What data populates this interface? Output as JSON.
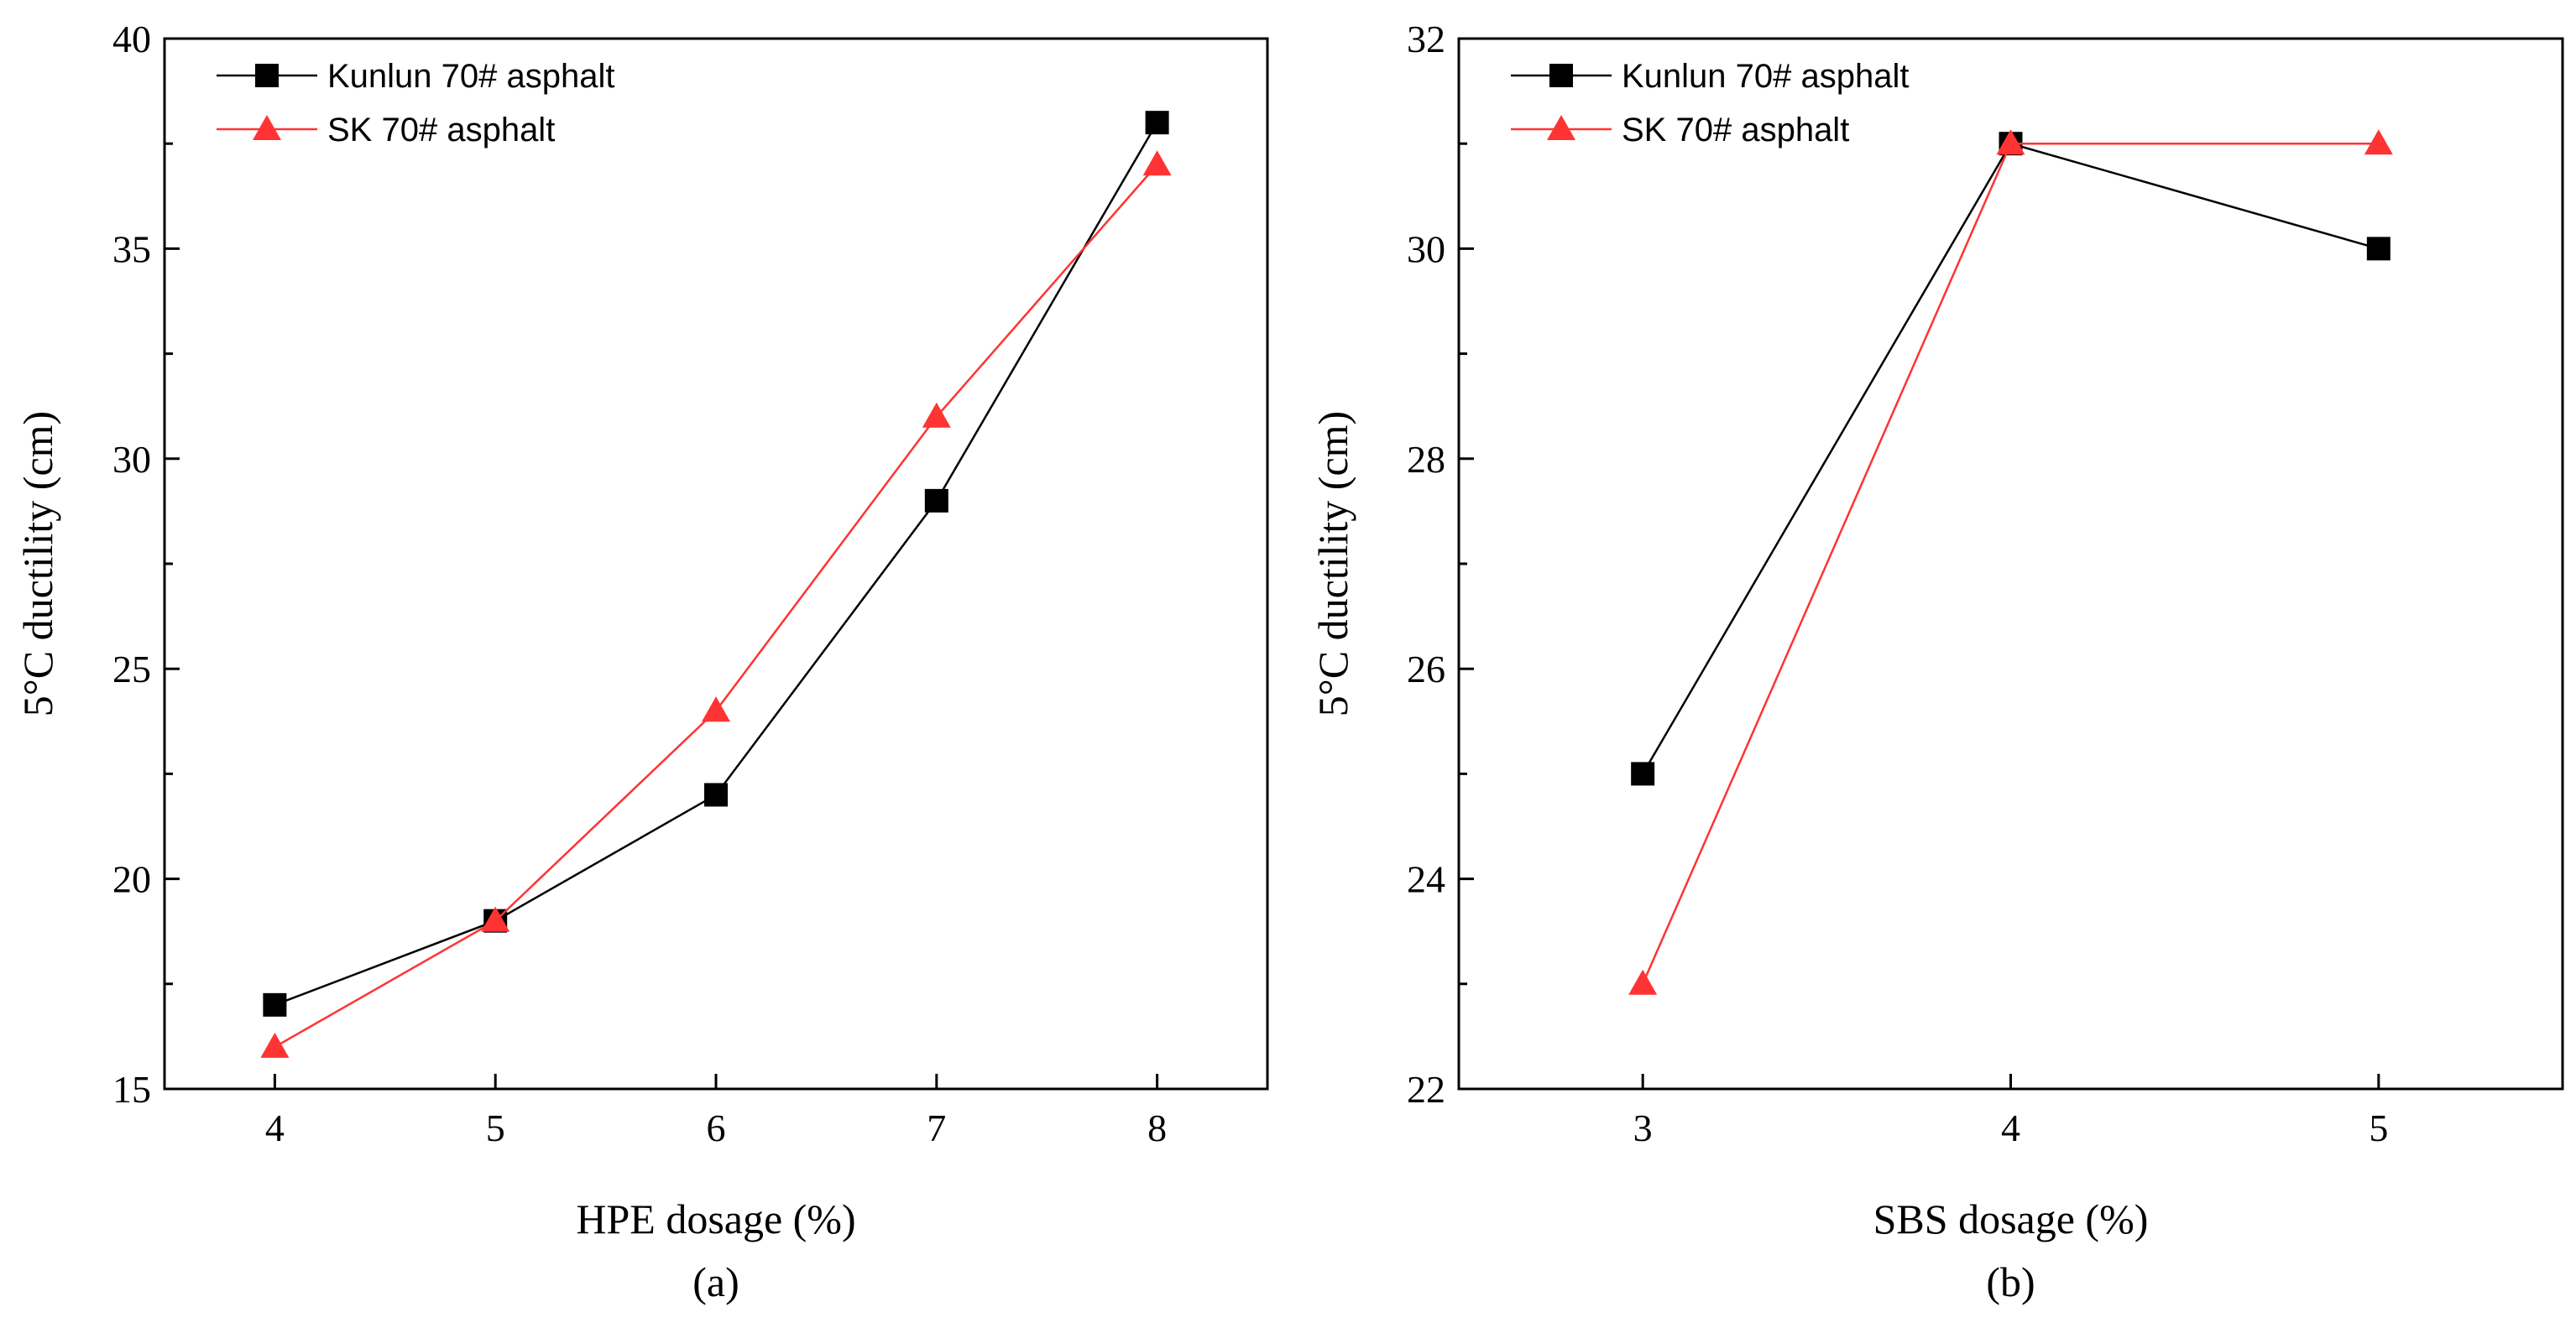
{
  "chart_data": [
    {
      "type": "line",
      "panel_label": "(a)",
      "xlabel": "HPE dosage (%)",
      "ylabel": "5°C ductility (cm)",
      "xlim": [
        3.5,
        8.5
      ],
      "ylim": [
        15,
        40
      ],
      "xticks": [
        4,
        5,
        6,
        7,
        8
      ],
      "yticks": [
        15,
        20,
        25,
        30,
        35,
        40
      ],
      "x": [
        4,
        5,
        6,
        7,
        8
      ],
      "series": [
        {
          "name": "Kunlun 70# asphalt",
          "values": [
            17,
            19,
            22,
            29,
            38
          ],
          "color": "#000000",
          "marker": "square"
        },
        {
          "name": "SK 70# asphalt",
          "values": [
            16,
            19,
            24,
            31,
            37
          ],
          "color": "#ff3333",
          "marker": "triangle"
        }
      ],
      "legend": "top-left"
    },
    {
      "type": "line",
      "panel_label": "(b)",
      "xlabel": "SBS dosage (%)",
      "ylabel": "5°C ductility (cm)",
      "xlim": [
        2.5,
        5.5
      ],
      "ylim": [
        22,
        32
      ],
      "xticks": [
        3,
        4,
        5
      ],
      "yticks": [
        22,
        24,
        26,
        28,
        30,
        32
      ],
      "x": [
        3,
        4,
        5
      ],
      "series": [
        {
          "name": "Kunlun 70# asphalt",
          "values": [
            25,
            31,
            30
          ],
          "color": "#000000",
          "marker": "square"
        },
        {
          "name": "SK 70# asphalt",
          "values": [
            23,
            31,
            31
          ],
          "color": "#ff3333",
          "marker": "triangle"
        }
      ],
      "legend": "top-left"
    }
  ]
}
